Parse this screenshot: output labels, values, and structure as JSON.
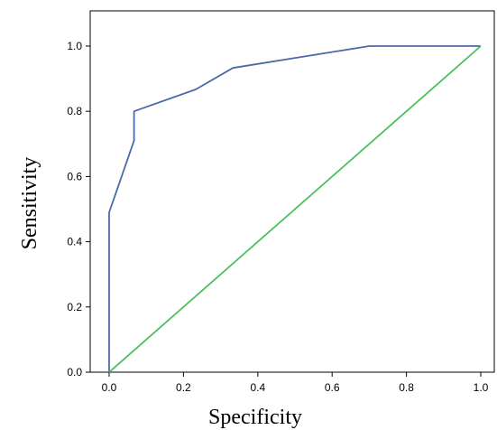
{
  "chart_data": {
    "type": "line",
    "title": "",
    "xlabel": "Specificity",
    "ylabel": "Sensitivity",
    "xlim": [
      0,
      1
    ],
    "ylim": [
      0,
      1
    ],
    "xticks": [
      "0.0",
      "0.2",
      "0.4",
      "0.6",
      "0.8",
      "1.0"
    ],
    "yticks": [
      "0.0",
      "0.2",
      "0.4",
      "0.6",
      "0.8",
      "1.0"
    ],
    "grid": false,
    "legend": "none",
    "series": [
      {
        "color": "#4a6aa8",
        "x": [
          0,
          0,
          0.067,
          0.067,
          0.233,
          0.333,
          0.7,
          1.0
        ],
        "y": [
          0,
          0.49,
          0.71,
          0.8,
          0.867,
          0.933,
          1.0,
          1.0
        ]
      },
      {
        "color": "#4cc05c",
        "x": [
          0,
          1
        ],
        "y": [
          0,
          1
        ]
      }
    ]
  }
}
